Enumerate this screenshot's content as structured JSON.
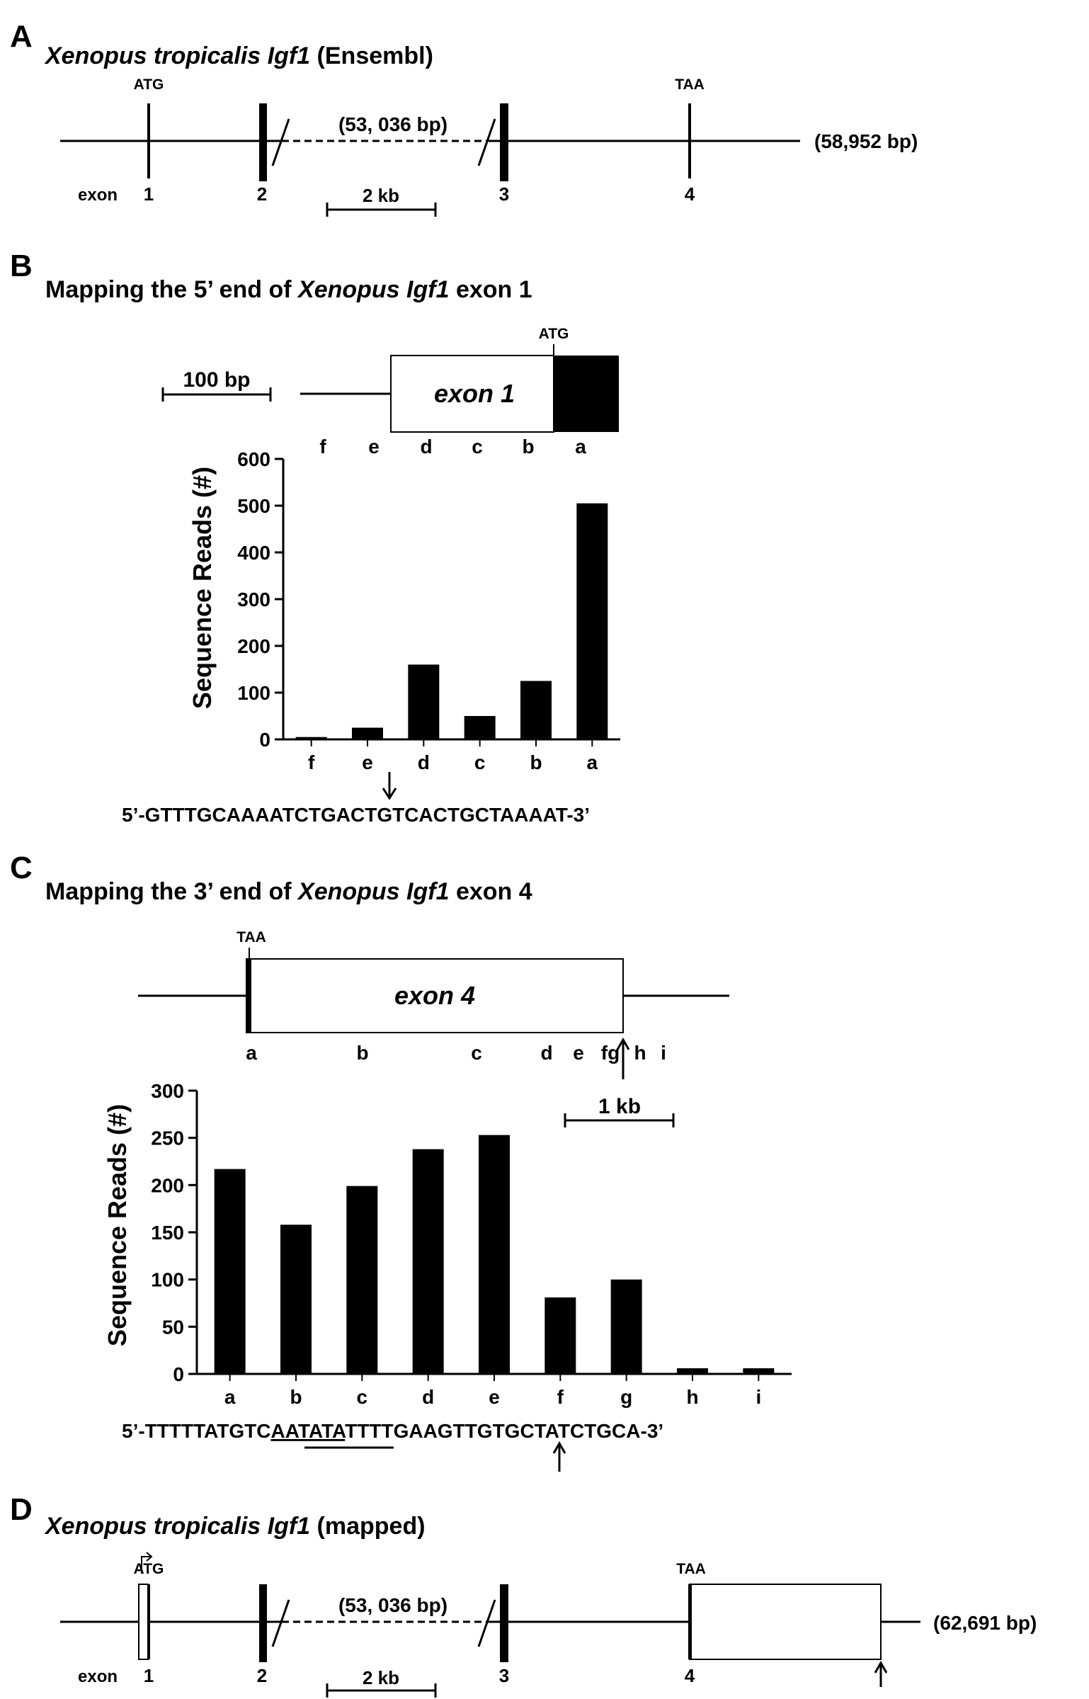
{
  "panelA": {
    "letter": "A",
    "title_species": "Xenopus tropicalis",
    "title_gene": "Igf1",
    "title_suffix": "(Ensembl)",
    "atg": "ATG",
    "taa": "TAA",
    "gap": "(53, 036 bp)",
    "length": "(58,952 bp)",
    "exon_word": "exon",
    "exons": [
      "1",
      "2",
      "3",
      "4"
    ],
    "scale": "2 kb"
  },
  "panelB": {
    "letter": "B",
    "title_prefix": "Mapping the 5’ end of",
    "title_species": "Xenopus",
    "title_gene": "Igf1",
    "title_suffix": "exon 1",
    "atg": "ATG",
    "exon_label": "exon 1",
    "scale": "100 bp",
    "sequence": "5’-GTTTGCAAAATCTGACTGTCACTGCTAAAAT-3’"
  },
  "panelC": {
    "letter": "C",
    "title_prefix": "Mapping the 3’ end of",
    "title_species": "Xenopus",
    "title_gene": "Igf1",
    "title_suffix": "exon 4",
    "taa": "TAA",
    "exon_label": "exon 4",
    "scale": "1 kb",
    "seq_pre": "5’-TTTTTATGTC",
    "seq_underlined": "AATATA",
    "seq_post": "TTTTGAAGTTGTGCTATCTGCA-3’"
  },
  "panelD": {
    "letter": "D",
    "title_species": "Xenopus tropicalis",
    "title_gene": "Igf1",
    "title_suffix": "(mapped)",
    "atg": "ATG",
    "taa": "TAA",
    "gap": "(53, 036 bp)",
    "length": "(62,691 bp)",
    "exon_word": "exon",
    "exons": [
      "1",
      "2",
      "3",
      "4"
    ],
    "scale": "2 kb"
  },
  "chart_data": [
    {
      "type": "bar",
      "ylabel": "Sequence Reads (#)",
      "categories": [
        "f",
        "e",
        "d",
        "c",
        "b",
        "a"
      ],
      "values": [
        5,
        25,
        160,
        50,
        125,
        505
      ],
      "ylim": [
        0,
        600
      ],
      "yticks": [
        0,
        100,
        200,
        300,
        400,
        500,
        600
      ],
      "map_labels": [
        "f",
        "e",
        "d",
        "c",
        "b",
        "a"
      ]
    },
    {
      "type": "bar",
      "ylabel": "Sequence Reads (#)",
      "categories": [
        "a",
        "b",
        "c",
        "d",
        "e",
        "f",
        "g",
        "h",
        "i"
      ],
      "values": [
        217,
        158,
        199,
        238,
        253,
        81,
        100,
        6,
        6
      ],
      "ylim": [
        0,
        300
      ],
      "yticks": [
        0,
        50,
        100,
        150,
        200,
        250,
        300
      ],
      "map_labels": [
        "a",
        "b",
        "c",
        "d",
        "e",
        "fg",
        "h",
        "i"
      ]
    }
  ]
}
